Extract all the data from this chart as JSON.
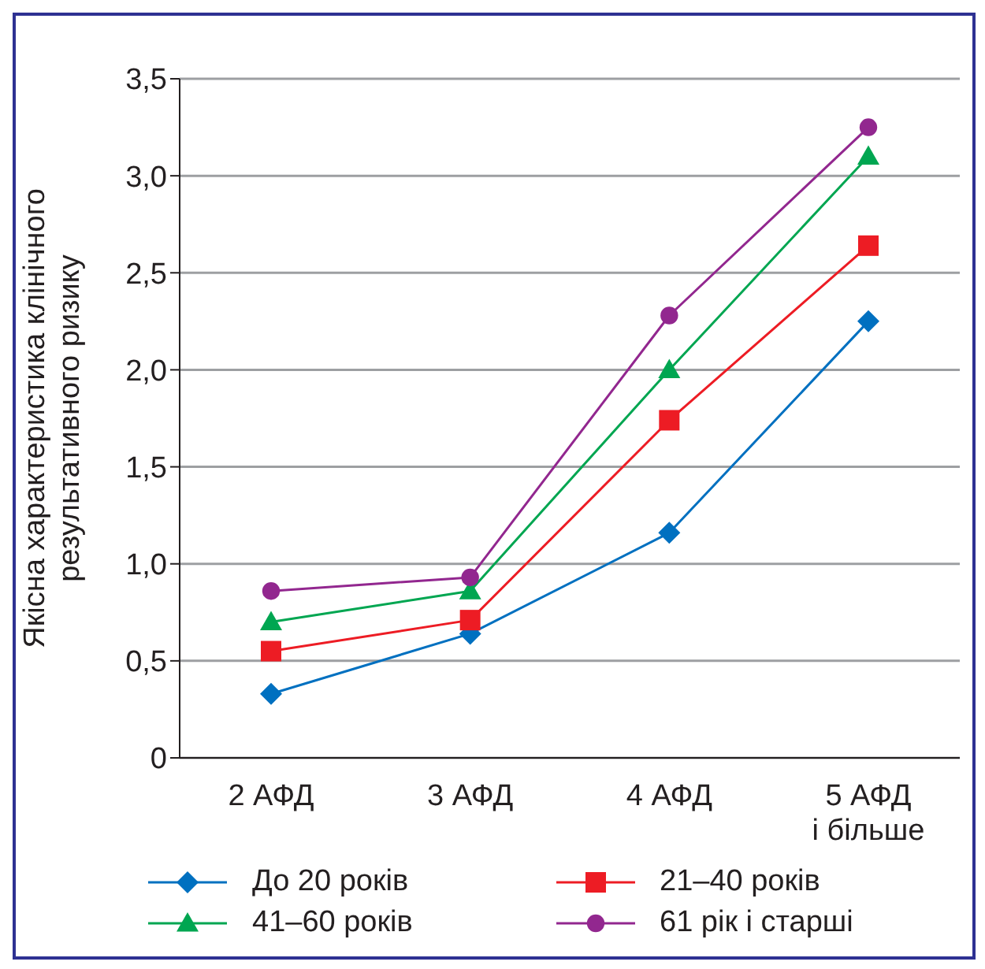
{
  "chart_data": {
    "type": "line",
    "ylabel": "Якісна характеристика клінічного\nрезультативного ризику",
    "categories": [
      "2 АФД",
      "3 АФД",
      "4 АФД",
      "5 АФД\nі більше"
    ],
    "series": [
      {
        "name": "До 20 років",
        "color": "#0070c0",
        "marker": "diamond",
        "values": [
          0.33,
          0.64,
          1.16,
          2.25
        ]
      },
      {
        "name": "21–40 років",
        "color": "#ed1c24",
        "marker": "square",
        "values": [
          0.55,
          0.71,
          1.74,
          2.64
        ]
      },
      {
        "name": "41–60 років",
        "color": "#00a651",
        "marker": "triangle",
        "values": [
          0.7,
          0.86,
          2.0,
          3.1
        ]
      },
      {
        "name": "61 рік і старші",
        "color": "#92278f",
        "marker": "circle",
        "values": [
          0.86,
          0.93,
          2.28,
          3.25
        ]
      }
    ],
    "ylim": [
      0,
      3.5
    ],
    "yticks": [
      0,
      {
        "value": 0.5,
        "label": "0,5"
      },
      {
        "value": 1,
        "label": "1,0"
      },
      {
        "value": 1.5,
        "label": "1,5"
      },
      {
        "value": 2,
        "label": "2,0"
      },
      {
        "value": 2.5,
        "label": "2,5"
      },
      {
        "value": 3,
        "label": "3,0"
      },
      {
        "value": 3.5,
        "label": "3,5"
      }
    ],
    "grid": "y",
    "legend": "bottom",
    "line_style": "solid"
  }
}
